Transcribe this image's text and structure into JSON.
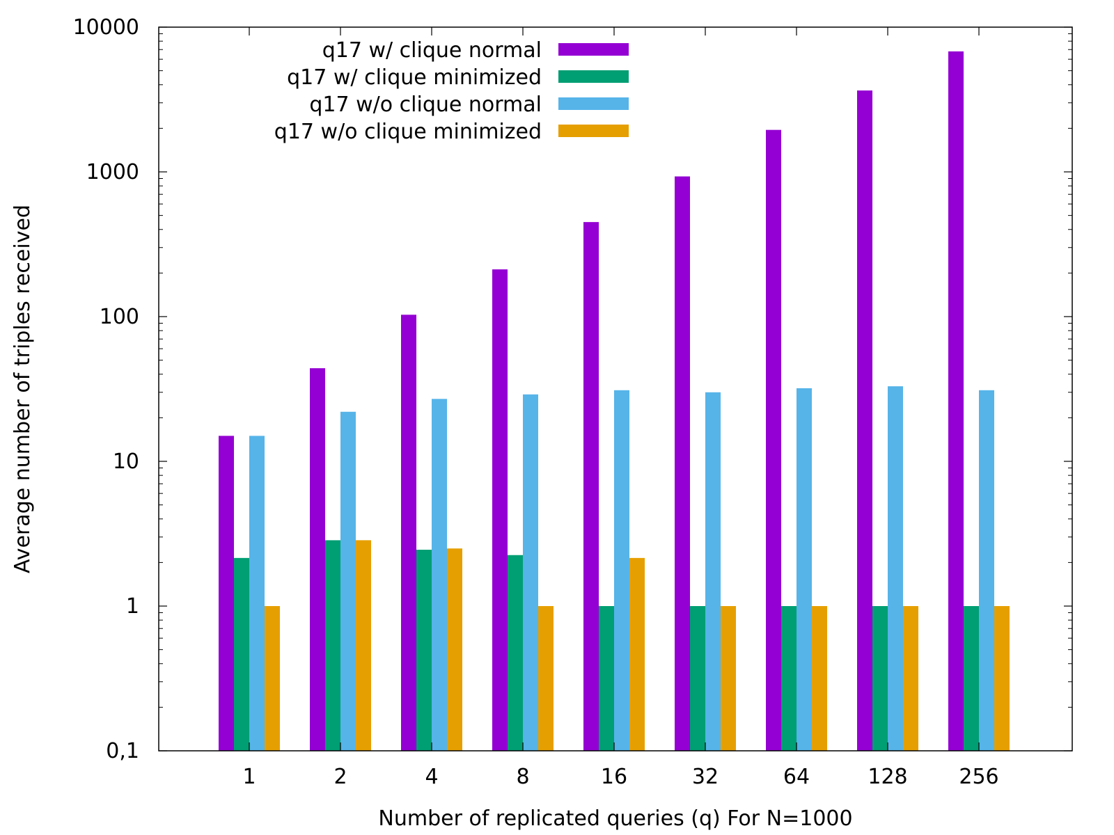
{
  "chart_data": {
    "type": "bar",
    "xlabel": "Number of replicated queries (q) For N=1000",
    "ylabel": "Average number of triples received",
    "yscale": "log",
    "ylim": [
      0.1,
      10000
    ],
    "yticks": [
      {
        "value": 0.1,
        "label": "0,1"
      },
      {
        "value": 1,
        "label": "1"
      },
      {
        "value": 10,
        "label": "10"
      },
      {
        "value": 100,
        "label": "100"
      },
      {
        "value": 1000,
        "label": "1000"
      },
      {
        "value": 10000,
        "label": "10000"
      }
    ],
    "categories": [
      "1",
      "2",
      "4",
      "8",
      "16",
      "32",
      "64",
      "128",
      "256"
    ],
    "legend_position": "top-left",
    "grid": false,
    "series": [
      {
        "name": "q17 w/ clique normal",
        "color": "#9400d3",
        "values": [
          15,
          44,
          103,
          212,
          450,
          930,
          1950,
          3650,
          6800
        ]
      },
      {
        "name": "q17 w/ clique minimized",
        "color": "#009e73",
        "values": [
          2.15,
          2.85,
          2.45,
          2.25,
          1,
          1,
          1,
          1,
          1
        ]
      },
      {
        "name": "q17 w/o clique normal",
        "color": "#56b4e9",
        "values": [
          15,
          22,
          27,
          29,
          31,
          30,
          32,
          33,
          31
        ]
      },
      {
        "name": "q17 w/o clique minimized",
        "color": "#e69f00",
        "values": [
          1,
          2.85,
          2.5,
          1,
          2.15,
          1,
          1,
          1,
          1
        ]
      }
    ]
  }
}
